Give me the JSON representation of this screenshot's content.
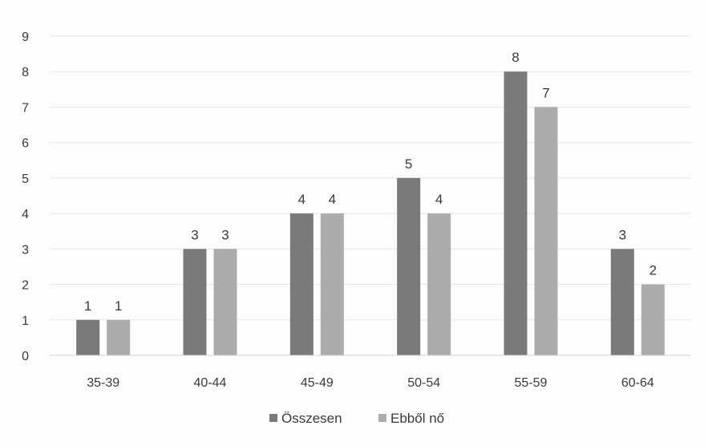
{
  "chart_data": {
    "type": "bar",
    "title": "",
    "xlabel": "",
    "ylabel": "",
    "categories": [
      "35-39",
      "40-44",
      "45-49",
      "50-54",
      "55-59",
      "60-64"
    ],
    "series": [
      {
        "name": "Összesen",
        "values": [
          1,
          3,
          4,
          5,
          8,
          3
        ],
        "color": "#7a7a7a"
      },
      {
        "name": "Ebből nő",
        "values": [
          1,
          3,
          4,
          4,
          7,
          2
        ],
        "color": "#acacac"
      }
    ],
    "ylim": [
      0,
      9
    ],
    "yticks": [
      0,
      1,
      2,
      3,
      4,
      5,
      6,
      7,
      8,
      9
    ],
    "grid": true,
    "data_labels": true,
    "legend_position": "bottom"
  }
}
